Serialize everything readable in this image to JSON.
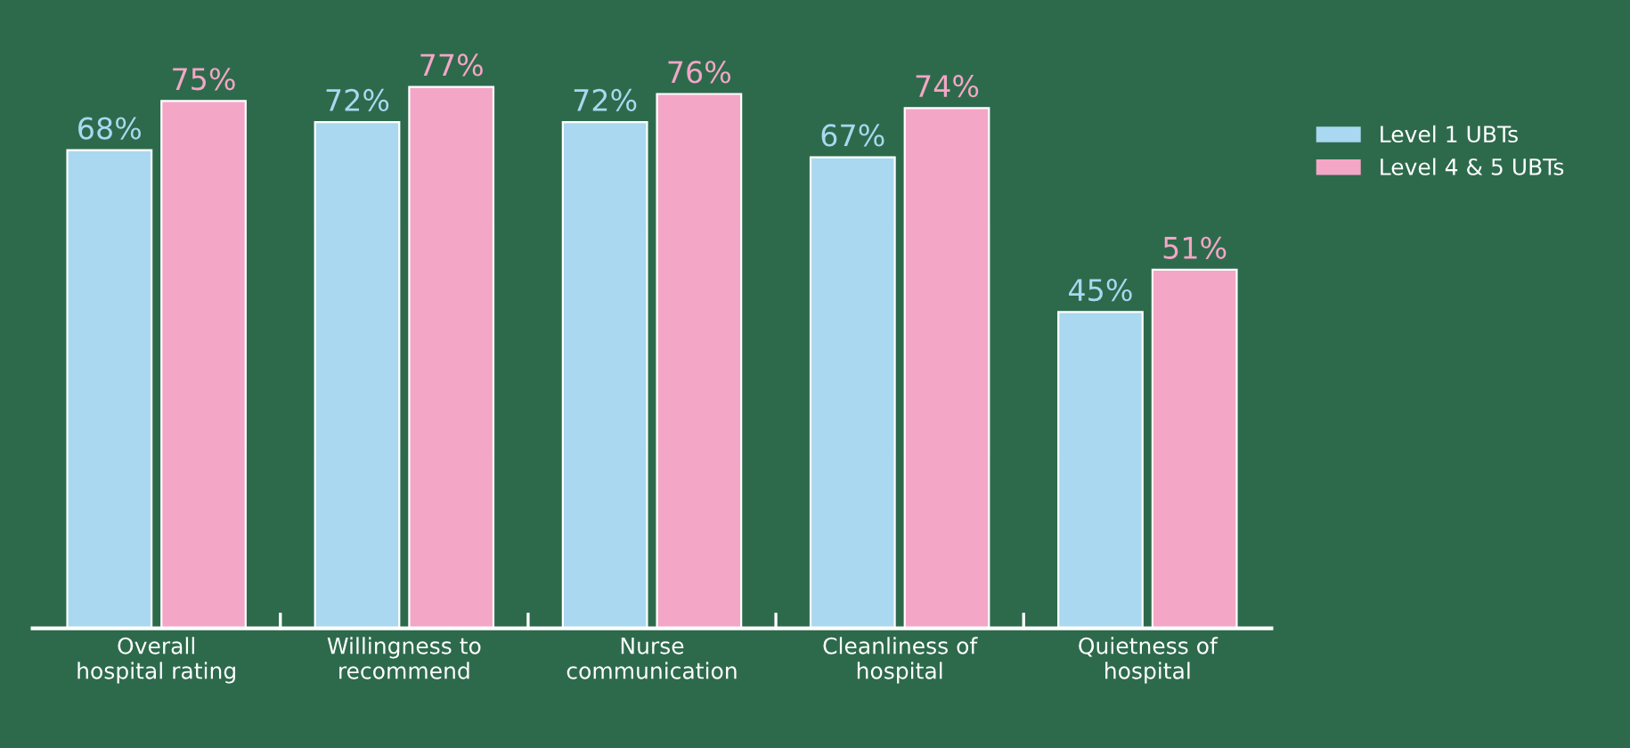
{
  "chart_data": {
    "type": "bar",
    "categories": [
      "Overall\nhospital rating",
      "Willingness to\nrecommend",
      "Nurse\ncommunication",
      "Cleanliness of\nhospital",
      "Quietness of\nhospital"
    ],
    "series": [
      {
        "name": "Level 1 UBTs",
        "color": "#a9d8f0",
        "values": [
          68,
          72,
          72,
          67,
          45
        ],
        "value_labels": [
          "68%",
          "72%",
          "72%",
          "67%",
          "45%"
        ]
      },
      {
        "name": "Level 4 & 5 UBTs",
        "color": "#f4a6c6",
        "values": [
          75,
          77,
          76,
          74,
          51
        ],
        "value_labels": [
          "75%",
          "77%",
          "76%",
          "74%",
          "51%"
        ]
      }
    ],
    "legend": "right",
    "grid": false
  }
}
